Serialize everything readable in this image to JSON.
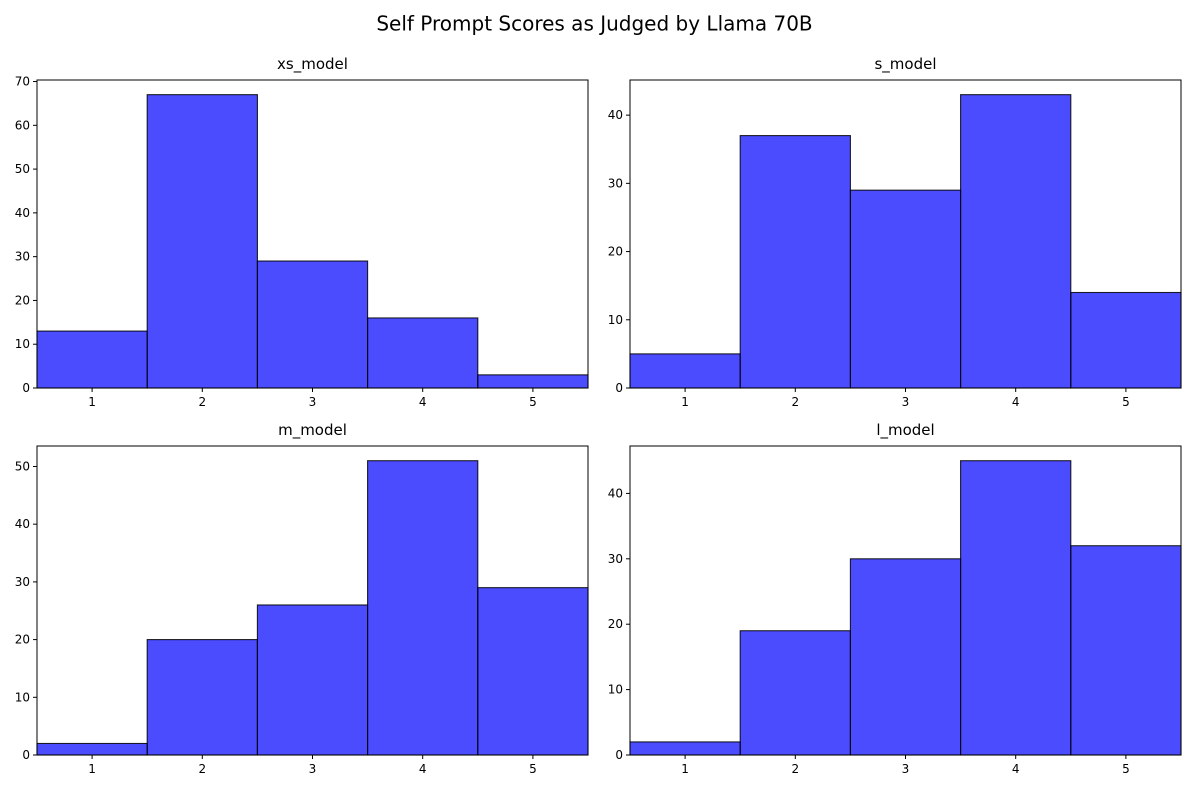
{
  "figure": {
    "title": "Self Prompt Scores as Judged by Llama 70B"
  },
  "chart_data": [
    {
      "type": "bar",
      "title": "xs_model",
      "categories": [
        "1",
        "2",
        "3",
        "4",
        "5"
      ],
      "values": [
        13,
        67,
        29,
        16,
        3
      ],
      "xlabel": "",
      "ylabel": "",
      "ylim": [
        0,
        70.35
      ],
      "yticks": [
        0,
        10,
        20,
        30,
        40,
        50,
        60,
        70
      ],
      "bar_color": "#0000FF",
      "bar_opacity": 0.7,
      "edge_color": "#000000",
      "grid": false
    },
    {
      "type": "bar",
      "title": "s_model",
      "categories": [
        "1",
        "2",
        "3",
        "4",
        "5"
      ],
      "values": [
        5,
        37,
        29,
        43,
        14
      ],
      "xlabel": "",
      "ylabel": "",
      "ylim": [
        0,
        45.15
      ],
      "yticks": [
        0,
        10,
        20,
        30,
        40
      ],
      "bar_color": "#0000FF",
      "bar_opacity": 0.7,
      "edge_color": "#000000",
      "grid": false
    },
    {
      "type": "bar",
      "title": "m_model",
      "categories": [
        "1",
        "2",
        "3",
        "4",
        "5"
      ],
      "values": [
        2,
        20,
        26,
        51,
        29
      ],
      "xlabel": "",
      "ylabel": "",
      "ylim": [
        0,
        53.55
      ],
      "yticks": [
        0,
        10,
        20,
        30,
        40,
        50
      ],
      "bar_color": "#0000FF",
      "bar_opacity": 0.7,
      "edge_color": "#000000",
      "grid": false
    },
    {
      "type": "bar",
      "title": "l_model",
      "categories": [
        "1",
        "2",
        "3",
        "4",
        "5"
      ],
      "values": [
        2,
        19,
        30,
        45,
        32
      ],
      "xlabel": "",
      "ylabel": "",
      "ylim": [
        0,
        47.25
      ],
      "yticks": [
        0,
        10,
        20,
        30,
        40
      ],
      "bar_color": "#0000FF",
      "bar_opacity": 0.7,
      "edge_color": "#000000",
      "grid": false
    }
  ]
}
